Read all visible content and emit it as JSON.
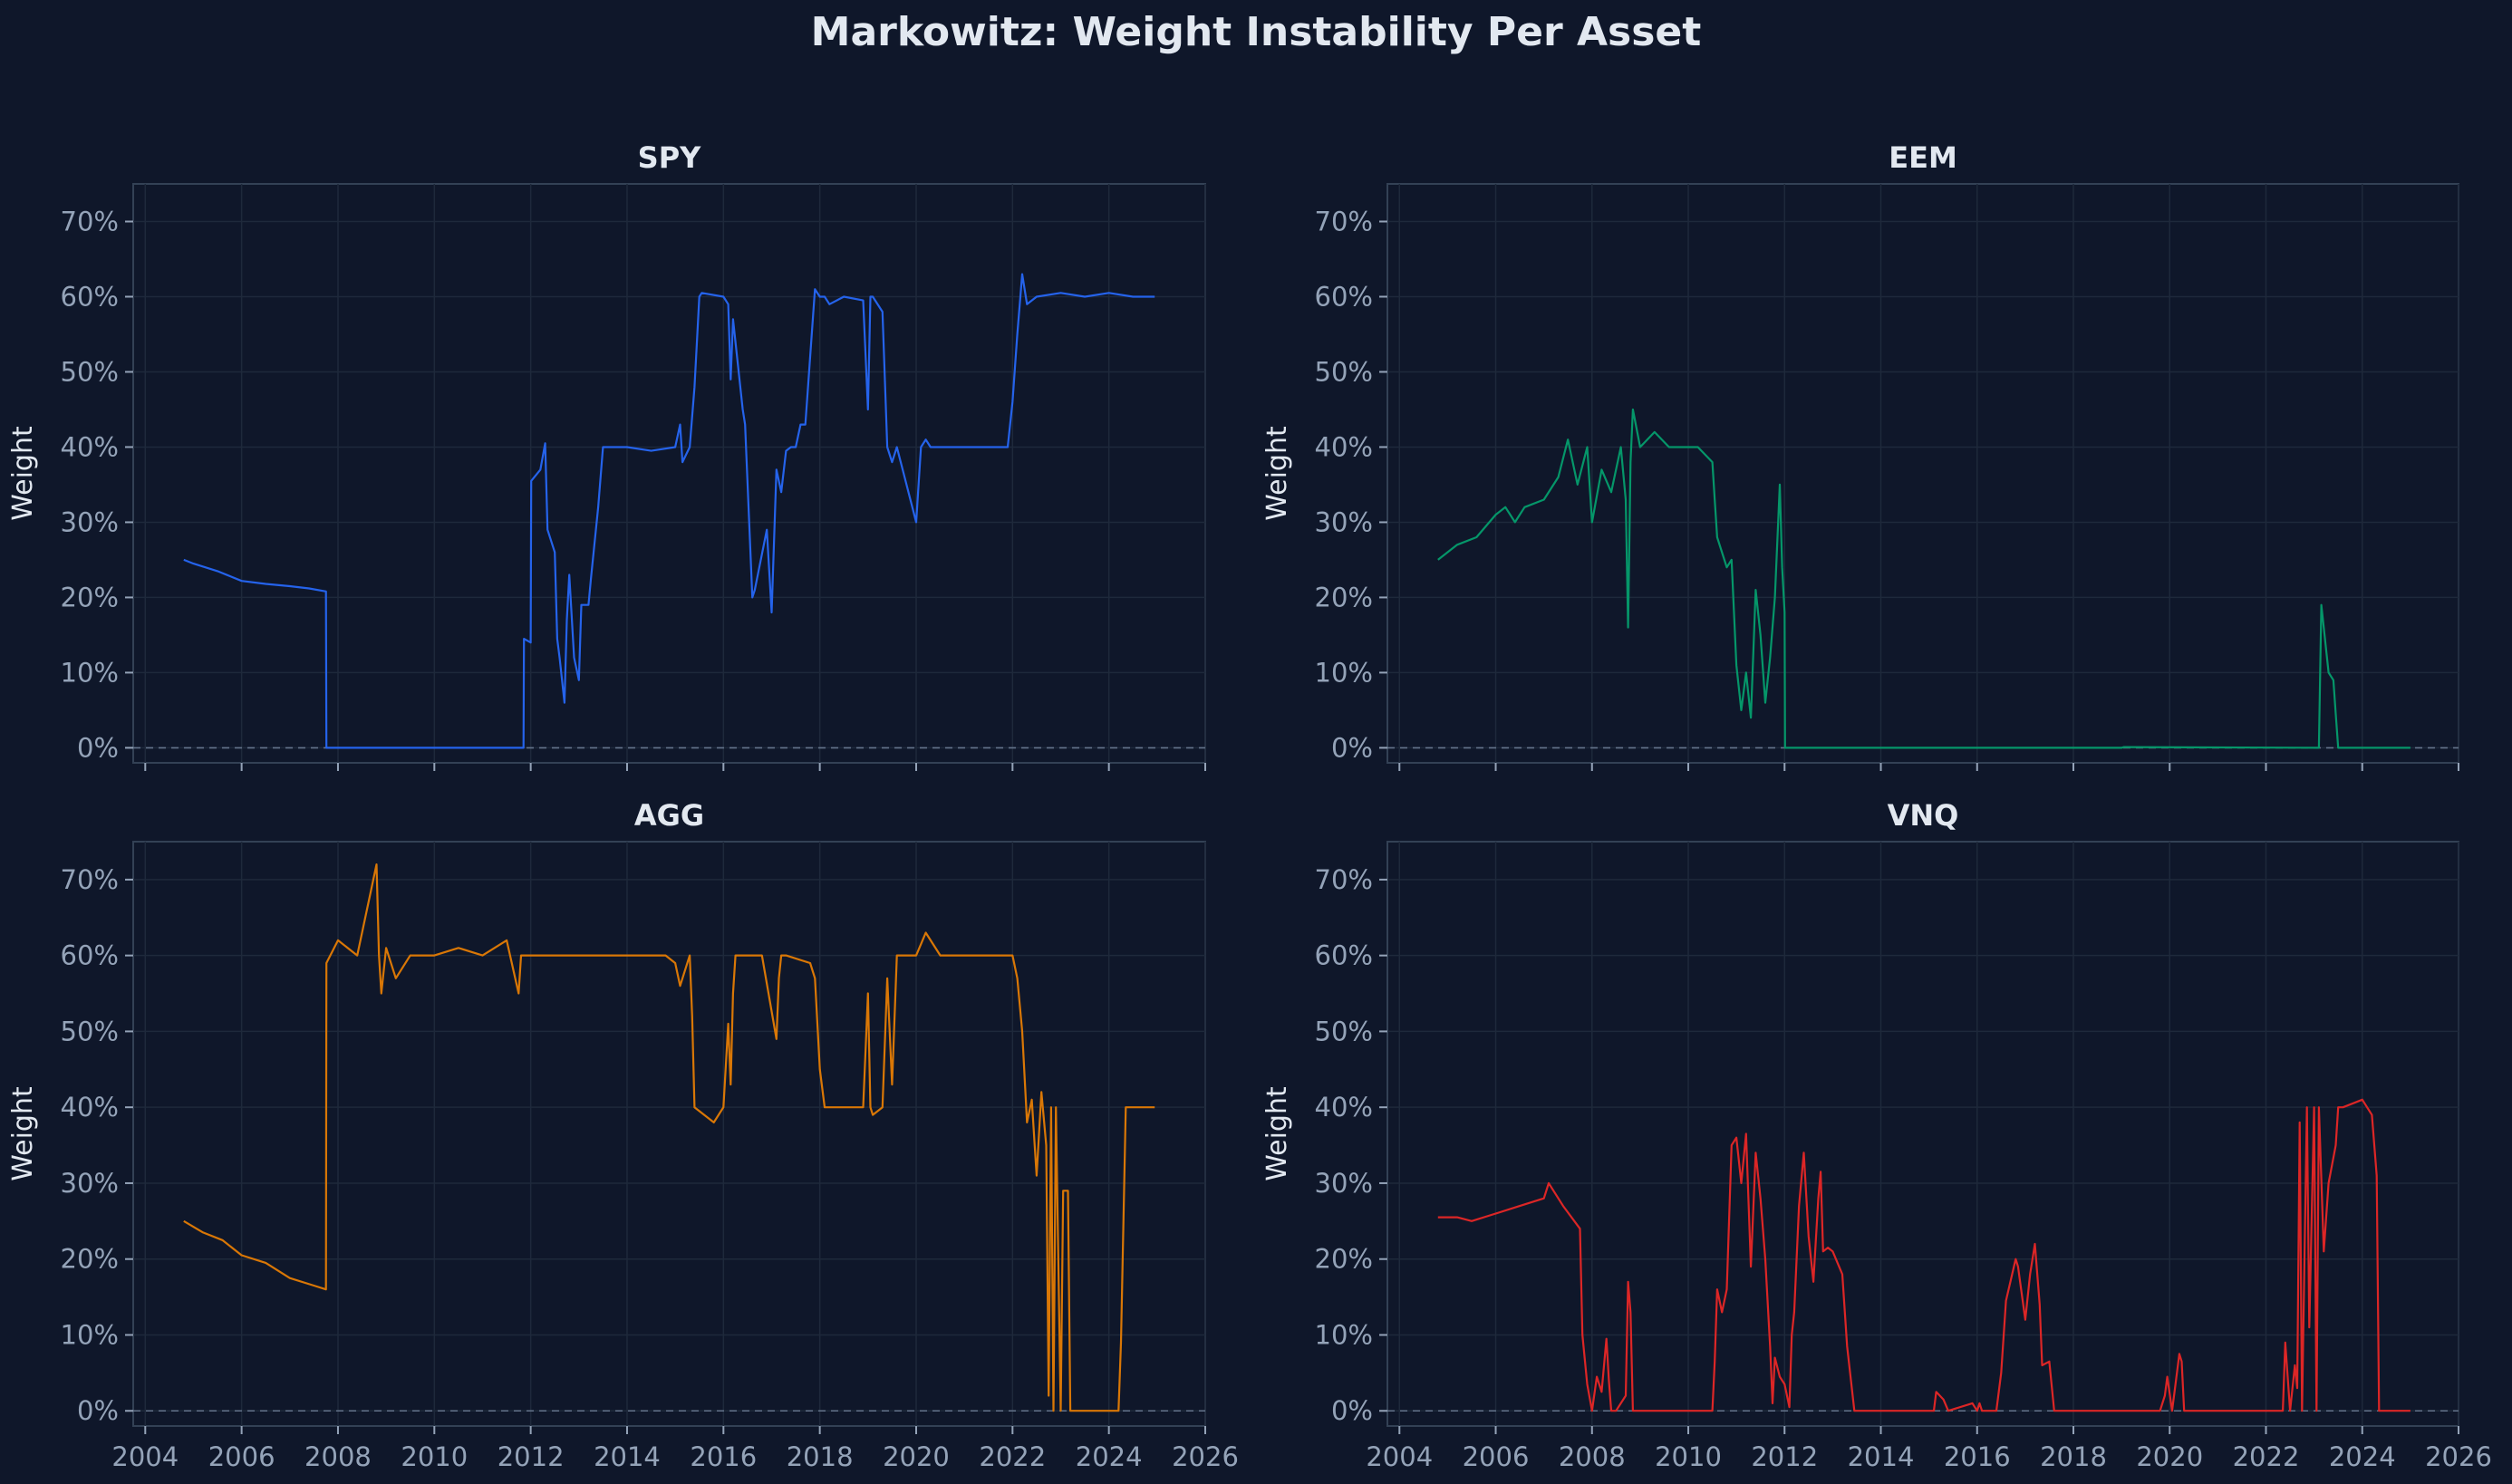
{
  "title": "Markowitz: Weight Instability Per Asset",
  "colors": {
    "background": "#0f172a",
    "axes_bg": "#0f172a",
    "spine": "#334155",
    "grid": "#1e293b",
    "tick_text": "#94a3b8",
    "title_text": "#e2e8f0",
    "zero_line": "#64748b"
  },
  "chart_data": [
    {
      "type": "line",
      "title": "SPY",
      "xlabel": "",
      "ylabel": "Weight",
      "color": "#2563eb",
      "ylim": [
        -0.02,
        0.75
      ],
      "xlim": [
        2003.75,
        2026
      ],
      "yticks": [
        "0%",
        "10%",
        "20%",
        "30%",
        "40%",
        "50%",
        "60%",
        "70%"
      ],
      "xticks": [
        "2004",
        "2006",
        "2008",
        "2010",
        "2012",
        "2014",
        "2016",
        "2018",
        "2020",
        "2022",
        "2024",
        "2026"
      ],
      "show_xticklabels": false,
      "grid": true,
      "zero_line": "dashed",
      "x": [
        2004.8,
        2005.0,
        2005.5,
        2006.0,
        2006.5,
        2007.0,
        2007.4,
        2007.75,
        2007.76,
        2011.85,
        2011.86,
        2012.0,
        2012.01,
        2012.2,
        2012.3,
        2012.35,
        2012.5,
        2012.55,
        2012.6,
        2012.7,
        2012.75,
        2012.8,
        2012.9,
        2013.0,
        2013.05,
        2013.2,
        2013.25,
        2013.4,
        2013.5,
        2013.6,
        2014.0,
        2014.5,
        2015.0,
        2015.1,
        2015.15,
        2015.3,
        2015.4,
        2015.5,
        2015.55,
        2016.0,
        2016.1,
        2016.15,
        2016.2,
        2016.4,
        2016.45,
        2016.6,
        2016.65,
        2016.9,
        2017.0,
        2017.1,
        2017.2,
        2017.3,
        2017.4,
        2017.5,
        2017.6,
        2017.7,
        2017.9,
        2018.0,
        2018.1,
        2018.2,
        2018.5,
        2018.9,
        2019.0,
        2019.05,
        2019.1,
        2019.3,
        2019.4,
        2019.5,
        2019.6,
        2020.0,
        2020.1,
        2020.2,
        2020.3,
        2020.5,
        2021.0,
        2021.5,
        2021.9,
        2022.0,
        2022.1,
        2022.2,
        2022.3,
        2022.5,
        2023.0,
        2023.5,
        2024.0,
        2024.5,
        2024.95
      ],
      "values": [
        0.25,
        0.245,
        0.235,
        0.222,
        0.218,
        0.215,
        0.212,
        0.208,
        0.0,
        0.0,
        0.145,
        0.14,
        0.355,
        0.37,
        0.405,
        0.29,
        0.26,
        0.145,
        0.12,
        0.06,
        0.17,
        0.23,
        0.12,
        0.09,
        0.19,
        0.19,
        0.225,
        0.32,
        0.4,
        0.4,
        0.4,
        0.395,
        0.4,
        0.43,
        0.38,
        0.4,
        0.48,
        0.6,
        0.605,
        0.6,
        0.59,
        0.49,
        0.57,
        0.45,
        0.43,
        0.2,
        0.21,
        0.29,
        0.18,
        0.37,
        0.34,
        0.395,
        0.4,
        0.4,
        0.43,
        0.43,
        0.61,
        0.6,
        0.6,
        0.59,
        0.6,
        0.595,
        0.45,
        0.6,
        0.6,
        0.58,
        0.4,
        0.38,
        0.4,
        0.3,
        0.4,
        0.41,
        0.4,
        0.4,
        0.4,
        0.4,
        0.4,
        0.46,
        0.55,
        0.63,
        0.59,
        0.6,
        0.605,
        0.6,
        0.605,
        0.6,
        0.6
      ]
    },
    {
      "type": "line",
      "title": "EEM",
      "xlabel": "",
      "ylabel": "Weight",
      "color": "#059669",
      "ylim": [
        -0.02,
        0.75
      ],
      "xlim": [
        2003.75,
        2026
      ],
      "yticks": [
        "0%",
        "10%",
        "20%",
        "30%",
        "40%",
        "50%",
        "60%",
        "70%"
      ],
      "xticks": [
        "2004",
        "2006",
        "2008",
        "2010",
        "2012",
        "2014",
        "2016",
        "2018",
        "2020",
        "2022",
        "2024",
        "2026"
      ],
      "show_xticklabels": false,
      "grid": true,
      "zero_line": "dashed",
      "x": [
        2004.8,
        2005.2,
        2005.6,
        2006.0,
        2006.2,
        2006.4,
        2006.6,
        2007.0,
        2007.3,
        2007.5,
        2007.6,
        2007.7,
        2007.9,
        2008.0,
        2008.2,
        2008.4,
        2008.6,
        2008.7,
        2008.75,
        2008.8,
        2008.85,
        2009.0,
        2009.3,
        2009.6,
        2010.0,
        2010.2,
        2010.5,
        2010.55,
        2010.6,
        2010.8,
        2010.9,
        2011.0,
        2011.1,
        2011.2,
        2011.3,
        2011.4,
        2011.5,
        2011.6,
        2011.7,
        2011.8,
        2011.9,
        2011.95,
        2012.0,
        2012.01,
        2019.0,
        2019.05,
        2023.1,
        2023.15,
        2023.3,
        2023.4,
        2023.45,
        2023.5,
        2025.0
      ],
      "values": [
        0.25,
        0.27,
        0.28,
        0.31,
        0.32,
        0.3,
        0.32,
        0.33,
        0.36,
        0.41,
        0.38,
        0.35,
        0.4,
        0.3,
        0.37,
        0.34,
        0.4,
        0.33,
        0.16,
        0.38,
        0.45,
        0.4,
        0.42,
        0.4,
        0.4,
        0.4,
        0.38,
        0.33,
        0.28,
        0.24,
        0.25,
        0.11,
        0.05,
        0.1,
        0.04,
        0.21,
        0.15,
        0.06,
        0.12,
        0.2,
        0.35,
        0.24,
        0.18,
        0.0,
        0.0,
        0.001,
        0.0,
        0.19,
        0.1,
        0.09,
        0.045,
        0.0,
        0.0
      ]
    },
    {
      "type": "line",
      "title": "AGG",
      "xlabel": "",
      "ylabel": "Weight",
      "color": "#d97706",
      "ylim": [
        -0.02,
        0.75
      ],
      "xlim": [
        2003.75,
        2026
      ],
      "yticks": [
        "0%",
        "10%",
        "20%",
        "30%",
        "40%",
        "50%",
        "60%",
        "70%"
      ],
      "xticks": [
        "2004",
        "2006",
        "2008",
        "2010",
        "2012",
        "2014",
        "2016",
        "2018",
        "2020",
        "2022",
        "2024",
        "2026"
      ],
      "show_xticklabels": true,
      "grid": true,
      "zero_line": "dashed",
      "x": [
        2004.8,
        2005.2,
        2005.6,
        2006.0,
        2006.5,
        2007.0,
        2007.5,
        2007.75,
        2007.76,
        2008.0,
        2008.4,
        2008.8,
        2008.85,
        2008.9,
        2009.0,
        2009.2,
        2009.5,
        2010.0,
        2010.5,
        2011.0,
        2011.5,
        2011.75,
        2011.8,
        2012.0,
        2013.0,
        2014.0,
        2014.8,
        2015.0,
        2015.1,
        2015.3,
        2015.35,
        2015.4,
        2015.8,
        2016.0,
        2016.1,
        2016.15,
        2016.2,
        2016.25,
        2016.4,
        2016.5,
        2016.8,
        2017.1,
        2017.15,
        2017.2,
        2017.3,
        2017.8,
        2017.9,
        2018.0,
        2018.1,
        2018.5,
        2018.9,
        2019.0,
        2019.05,
        2019.1,
        2019.3,
        2019.4,
        2019.5,
        2019.6,
        2020.0,
        2020.2,
        2020.5,
        2021.0,
        2021.5,
        2022.0,
        2022.1,
        2022.2,
        2022.3,
        2022.4,
        2022.5,
        2022.6,
        2022.7,
        2022.75,
        2022.8,
        2022.85,
        2022.9,
        2023.0,
        2023.05,
        2023.15,
        2023.2,
        2024.2,
        2024.25,
        2024.35,
        2024.4,
        2024.6,
        2024.8,
        2024.95
      ],
      "values": [
        0.25,
        0.235,
        0.225,
        0.205,
        0.195,
        0.175,
        0.165,
        0.16,
        0.59,
        0.62,
        0.6,
        0.72,
        0.6,
        0.55,
        0.61,
        0.57,
        0.6,
        0.6,
        0.61,
        0.6,
        0.62,
        0.55,
        0.6,
        0.6,
        0.6,
        0.6,
        0.6,
        0.59,
        0.56,
        0.6,
        0.52,
        0.4,
        0.38,
        0.4,
        0.51,
        0.43,
        0.55,
        0.6,
        0.6,
        0.6,
        0.6,
        0.49,
        0.57,
        0.6,
        0.6,
        0.59,
        0.57,
        0.45,
        0.4,
        0.4,
        0.4,
        0.55,
        0.4,
        0.39,
        0.4,
        0.57,
        0.43,
        0.6,
        0.6,
        0.63,
        0.6,
        0.6,
        0.6,
        0.6,
        0.57,
        0.5,
        0.38,
        0.41,
        0.31,
        0.42,
        0.35,
        0.02,
        0.4,
        0.0,
        0.4,
        0.0,
        0.29,
        0.29,
        0.0,
        0.0,
        0.09,
        0.4,
        0.4,
        0.4,
        0.4,
        0.4
      ]
    },
    {
      "type": "line",
      "title": "VNQ",
      "xlabel": "",
      "ylabel": "Weight",
      "color": "#dc2626",
      "ylim": [
        -0.02,
        0.75
      ],
      "xlim": [
        2003.75,
        2026
      ],
      "yticks": [
        "0%",
        "10%",
        "20%",
        "30%",
        "40%",
        "50%",
        "60%",
        "70%"
      ],
      "xticks": [
        "2004",
        "2006",
        "2008",
        "2010",
        "2012",
        "2014",
        "2016",
        "2018",
        "2020",
        "2022",
        "2024",
        "2026"
      ],
      "show_xticklabels": true,
      "grid": true,
      "zero_line": "dashed",
      "x": [
        2004.8,
        2005.2,
        2005.5,
        2006.0,
        2006.5,
        2007.0,
        2007.1,
        2007.4,
        2007.75,
        2007.8,
        2007.9,
        2008.0,
        2008.1,
        2008.2,
        2008.3,
        2008.35,
        2008.4,
        2008.5,
        2008.7,
        2008.75,
        2008.8,
        2008.85,
        2008.9,
        2010.5,
        2010.55,
        2010.6,
        2010.7,
        2010.8,
        2010.9,
        2011.0,
        2011.1,
        2011.2,
        2011.3,
        2011.4,
        2011.5,
        2011.6,
        2011.7,
        2011.75,
        2011.8,
        2011.9,
        2012.0,
        2012.1,
        2012.15,
        2012.2,
        2012.3,
        2012.4,
        2012.5,
        2012.6,
        2012.7,
        2012.75,
        2012.8,
        2012.9,
        2013.0,
        2013.2,
        2013.3,
        2013.45,
        2013.5,
        2015.1,
        2015.15,
        2015.3,
        2015.4,
        2015.9,
        2016.0,
        2016.05,
        2016.1,
        2016.4,
        2016.5,
        2016.6,
        2016.8,
        2016.85,
        2017.0,
        2017.1,
        2017.2,
        2017.3,
        2017.35,
        2017.5,
        2017.6,
        2019.8,
        2019.9,
        2019.95,
        2020.05,
        2020.1,
        2020.2,
        2020.25,
        2020.3,
        2022.35,
        2022.4,
        2022.5,
        2022.6,
        2022.65,
        2022.7,
        2022.75,
        2022.85,
        2022.9,
        2023.0,
        2023.05,
        2023.1,
        2023.2,
        2023.3,
        2023.45,
        2023.5,
        2023.6,
        2024.0,
        2024.2,
        2024.3,
        2024.35,
        2025.0
      ],
      "values": [
        0.255,
        0.255,
        0.25,
        0.26,
        0.27,
        0.28,
        0.3,
        0.27,
        0.24,
        0.1,
        0.035,
        0.0,
        0.045,
        0.025,
        0.095,
        0.04,
        0.0,
        0.0,
        0.02,
        0.17,
        0.13,
        0.0,
        0.0,
        0.0,
        0.065,
        0.16,
        0.13,
        0.16,
        0.35,
        0.36,
        0.3,
        0.365,
        0.19,
        0.34,
        0.28,
        0.2,
        0.085,
        0.01,
        0.07,
        0.045,
        0.035,
        0.005,
        0.1,
        0.13,
        0.27,
        0.34,
        0.23,
        0.17,
        0.28,
        0.315,
        0.21,
        0.215,
        0.21,
        0.18,
        0.085,
        0.0,
        0.0,
        0.0,
        0.025,
        0.015,
        0.0,
        0.01,
        0.0,
        0.01,
        0.0,
        0.0,
        0.05,
        0.145,
        0.2,
        0.19,
        0.12,
        0.18,
        0.22,
        0.14,
        0.06,
        0.065,
        0.0,
        0.0,
        0.02,
        0.045,
        0.0,
        0.025,
        0.075,
        0.065,
        0.0,
        0.0,
        0.09,
        0.0,
        0.06,
        0.03,
        0.38,
        0.0,
        0.4,
        0.11,
        0.4,
        0.0,
        0.4,
        0.21,
        0.3,
        0.35,
        0.4,
        0.4,
        0.41,
        0.39,
        0.31,
        0.0,
        0.0
      ]
    }
  ]
}
